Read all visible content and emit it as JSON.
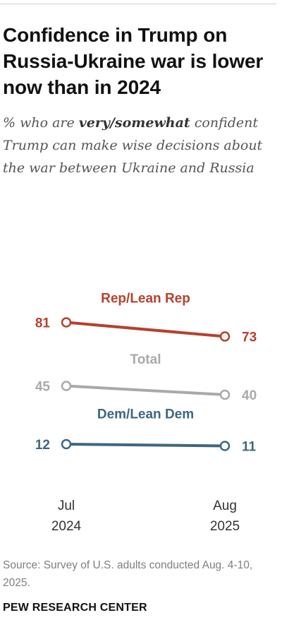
{
  "title": "Confidence in Trump on Russia-Ukraine war is lower now than in 2024",
  "subtitle": {
    "before": "% who are ",
    "emphasis": "very/somewhat",
    "after": " confident Trump can make wise decisions about the war between Ukraine and Russia"
  },
  "colors": {
    "rep": "#b6402e",
    "total": "#a9a9a9",
    "dem": "#3f6682",
    "axis_text": "#333333"
  },
  "chart_data": {
    "type": "line",
    "x": [
      "Jul\n2024",
      "Aug\n2025"
    ],
    "x_lines": [
      [
        "Jul",
        "2024"
      ],
      [
        "Aug",
        "2025"
      ]
    ],
    "series": [
      {
        "name": "Rep/Lean Rep",
        "values": [
          81,
          73
        ],
        "color": "#b6402e"
      },
      {
        "name": "Total",
        "values": [
          45,
          40
        ],
        "color": "#a9a9a9"
      },
      {
        "name": "Dem/Lean Dem",
        "values": [
          12,
          11
        ],
        "color": "#3f6682"
      }
    ],
    "ylim": [
      0,
      100
    ],
    "grid": false,
    "legend": "labels above each line"
  },
  "source": "Source: Survey of U.S. adults conducted Aug. 4-10, 2025.",
  "organization": "PEW RESEARCH CENTER"
}
